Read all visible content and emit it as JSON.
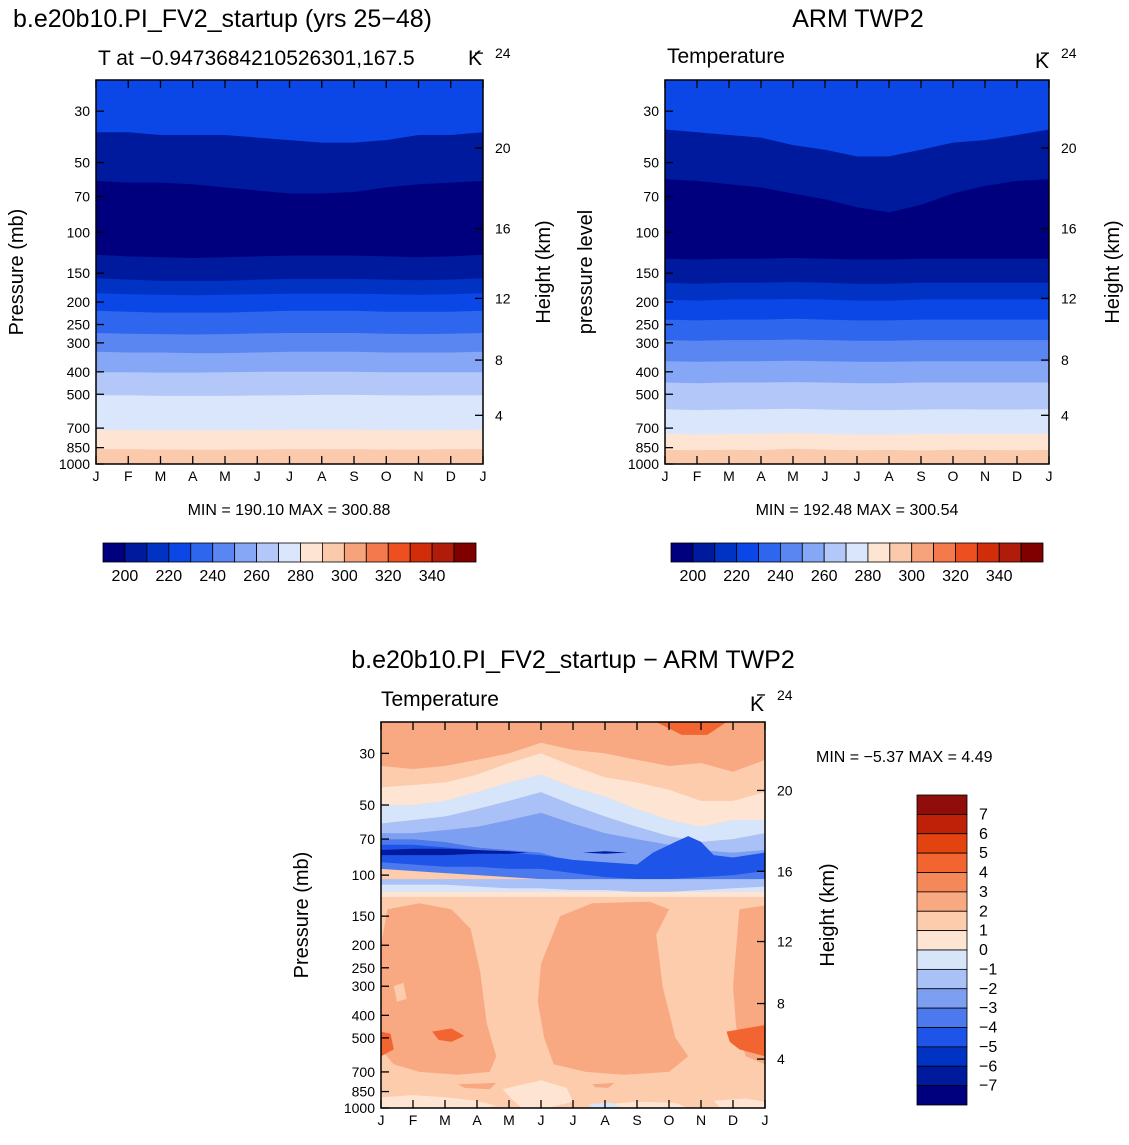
{
  "months": [
    "J",
    "F",
    "M",
    "A",
    "M",
    "J",
    "J",
    "A",
    "S",
    "O",
    "N",
    "D",
    "J"
  ],
  "pressure_ticks": [
    30,
    50,
    70,
    100,
    150,
    200,
    250,
    300,
    400,
    500,
    700,
    850,
    1000
  ],
  "height_ticks": [
    4,
    8,
    12,
    16,
    20,
    24
  ],
  "palette_abs": [
    "#00007f",
    "#001a9e",
    "#0033c4",
    "#0a47e6",
    "#2e66ee",
    "#5a86f2",
    "#85a7f5",
    "#b3c8f9",
    "#d9e6fc",
    "#fde4d3",
    "#fbc9ab",
    "#f6a27a",
    "#f47a4e",
    "#ee4f21",
    "#d22d0b",
    "#b01c0a",
    "#800000"
  ],
  "palette_diff": [
    "#00007f",
    "#001a9e",
    "#0033c4",
    "#1e55e8",
    "#4c7aee",
    "#7d9ff2",
    "#a9c1f6",
    "#d7e5fb",
    "#fde4d3",
    "#fcccad",
    "#f8a981",
    "#f48858",
    "#f26530",
    "#e3440f",
    "#bf2108",
    "#8f0d0b"
  ],
  "panels": [
    {
      "title": "b.e20b10.PI_FV2_startup (yrs 25−48)",
      "subtitle_left": "T at −0.9473684210526301,167.5",
      "subtitle_right": "K",
      "ylabel": "Pressure (mb)",
      "ylabel_right": "Height (km)",
      "stats": "MIN = 190.10 MAX = 300.88"
    },
    {
      "title": "ARM TWP2",
      "subtitle_left": "Temperature",
      "subtitle_right": "K",
      "ylabel": "pressure level",
      "ylabel_right": "Height (km)",
      "stats": "MIN = 192.48 MAX = 300.54"
    },
    {
      "title": "b.e20b10.PI_FV2_startup − ARM TWP2",
      "subtitle_left": "Temperature",
      "subtitle_right": "K",
      "ylabel": "Pressure (mb)",
      "ylabel_right": "Height (km)",
      "stats": "MIN =    −5.37 MAX =     4.49"
    }
  ],
  "colorbar_abs_labels": [
    "200",
    "220",
    "240",
    "260",
    "280",
    "300",
    "320",
    "340"
  ],
  "colorbar_diff_labels": [
    "7",
    "6",
    "5",
    "4",
    "3",
    "2",
    "1",
    "0",
    "−1",
    "−2",
    "−3",
    "−4",
    "−5",
    "−6",
    "−7"
  ],
  "chart_data": [
    {
      "type": "heatmap",
      "title": "b.e20b10.PI_FV2_startup (yrs 25−48)",
      "subtitle": "T at −0.9473684210526301,167.5",
      "units": "K",
      "ylabel": "Pressure (mb)",
      "ylabel_right": "Height (km)",
      "x": [
        "J",
        "F",
        "M",
        "A",
        "M",
        "J",
        "J",
        "A",
        "S",
        "O",
        "N",
        "D",
        "J"
      ],
      "y_pressure": [
        1000,
        850,
        700,
        500,
        400,
        300,
        250,
        200,
        150,
        100,
        70,
        50,
        30
      ],
      "min": 190.1,
      "max": 300.88,
      "contour_levels": [
        200,
        210,
        220,
        230,
        240,
        250,
        260,
        270,
        280,
        290,
        300,
        310,
        320,
        330,
        340
      ],
      "approx_band_tops_mb": [
        {
          "level": 290,
          "top_mb": 850
        },
        {
          "level": 280,
          "top_mb": 700
        },
        {
          "level": 270,
          "top_mb": 500
        },
        {
          "level": 260,
          "top_mb": 400
        },
        {
          "level": 250,
          "top_mb": 330
        },
        {
          "level": 240,
          "top_mb": 275
        },
        {
          "level": 230,
          "top_mb": 220
        },
        {
          "level": 220,
          "top_mb": 185
        },
        {
          "level": 210,
          "top_mb": 160
        },
        {
          "level": 200,
          "top_mb": 125
        },
        {
          "level": 190,
          "top_mb": 62
        },
        {
          "level": 200,
          "top_mb": 40
        }
      ]
    },
    {
      "type": "heatmap",
      "title": "ARM TWP2",
      "subtitle": "Temperature",
      "units": "K",
      "ylabel": "pressure level",
      "ylabel_right": "Height (km)",
      "x": [
        "J",
        "F",
        "M",
        "A",
        "M",
        "J",
        "J",
        "A",
        "S",
        "O",
        "N",
        "D",
        "J"
      ],
      "y_pressure": [
        1000,
        850,
        700,
        500,
        400,
        300,
        250,
        200,
        150,
        100,
        70,
        50,
        30
      ],
      "min": 192.48,
      "max": 300.54,
      "contour_levels": [
        200,
        210,
        220,
        230,
        240,
        250,
        260,
        270,
        280,
        290,
        300,
        310,
        320,
        330,
        340
      ]
    },
    {
      "type": "heatmap",
      "title": "b.e20b10.PI_FV2_startup − ARM TWP2",
      "subtitle": "Temperature",
      "units": "K",
      "ylabel": "Pressure (mb)",
      "ylabel_right": "Height (km)",
      "x": [
        "J",
        "F",
        "M",
        "A",
        "M",
        "J",
        "J",
        "A",
        "S",
        "O",
        "N",
        "D",
        "J"
      ],
      "y_pressure": [
        1000,
        850,
        700,
        500,
        400,
        300,
        250,
        200,
        150,
        100,
        70,
        50,
        30
      ],
      "min": -5.37,
      "max": 4.49,
      "contour_levels": [
        -7,
        -6,
        -5,
        -4,
        -3,
        -2,
        -1,
        0,
        1,
        2,
        3,
        4,
        5,
        6,
        7
      ]
    }
  ]
}
